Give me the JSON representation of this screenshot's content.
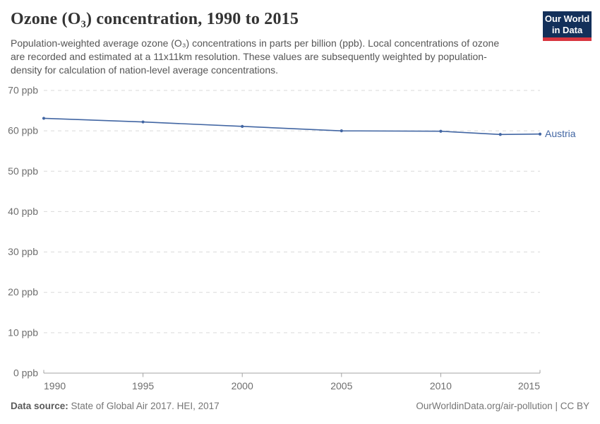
{
  "header": {
    "title": "Ozone (O₃) concentration, 1990 to 2015",
    "subtitle": "Population-weighted average ozone (O₃) concentrations in parts per billion (ppb). Local concentrations of ozone are recorded and estimated at a 11x11km resolution. These values are subsequently weighted by population-density for calculation of nation-level average concentrations.",
    "logo": {
      "line1": "Our World",
      "line2": "in Data",
      "bg_color": "#13305a",
      "stripe_color": "#d8353f"
    }
  },
  "chart_data": {
    "type": "line",
    "title": "Ozone (O₃) concentration, 1990 to 2015",
    "xlabel": "",
    "ylabel": "ppb",
    "xlim": [
      1990,
      2015
    ],
    "ylim": [
      0,
      70
    ],
    "grid": "horizontal-dashed",
    "legend_position": "end-of-line-label",
    "xticks": [
      1990,
      1995,
      2000,
      2005,
      2010,
      2015
    ],
    "yticks": [
      0,
      10,
      20,
      30,
      40,
      50,
      60,
      70
    ],
    "ytick_suffix": " ppb",
    "series": [
      {
        "name": "Austria",
        "color": "#4266a3",
        "x": [
          1990,
          1995,
          2000,
          2005,
          2010,
          2013,
          2015
        ],
        "values": [
          63.1,
          62.2,
          61.1,
          60.0,
          59.9,
          59.1,
          59.2
        ]
      }
    ]
  },
  "footer": {
    "source_label": "Data source:",
    "source_text": " State of Global Air 2017. HEI, 2017",
    "credit": "OurWorldinData.org/air-pollution | CC BY"
  }
}
